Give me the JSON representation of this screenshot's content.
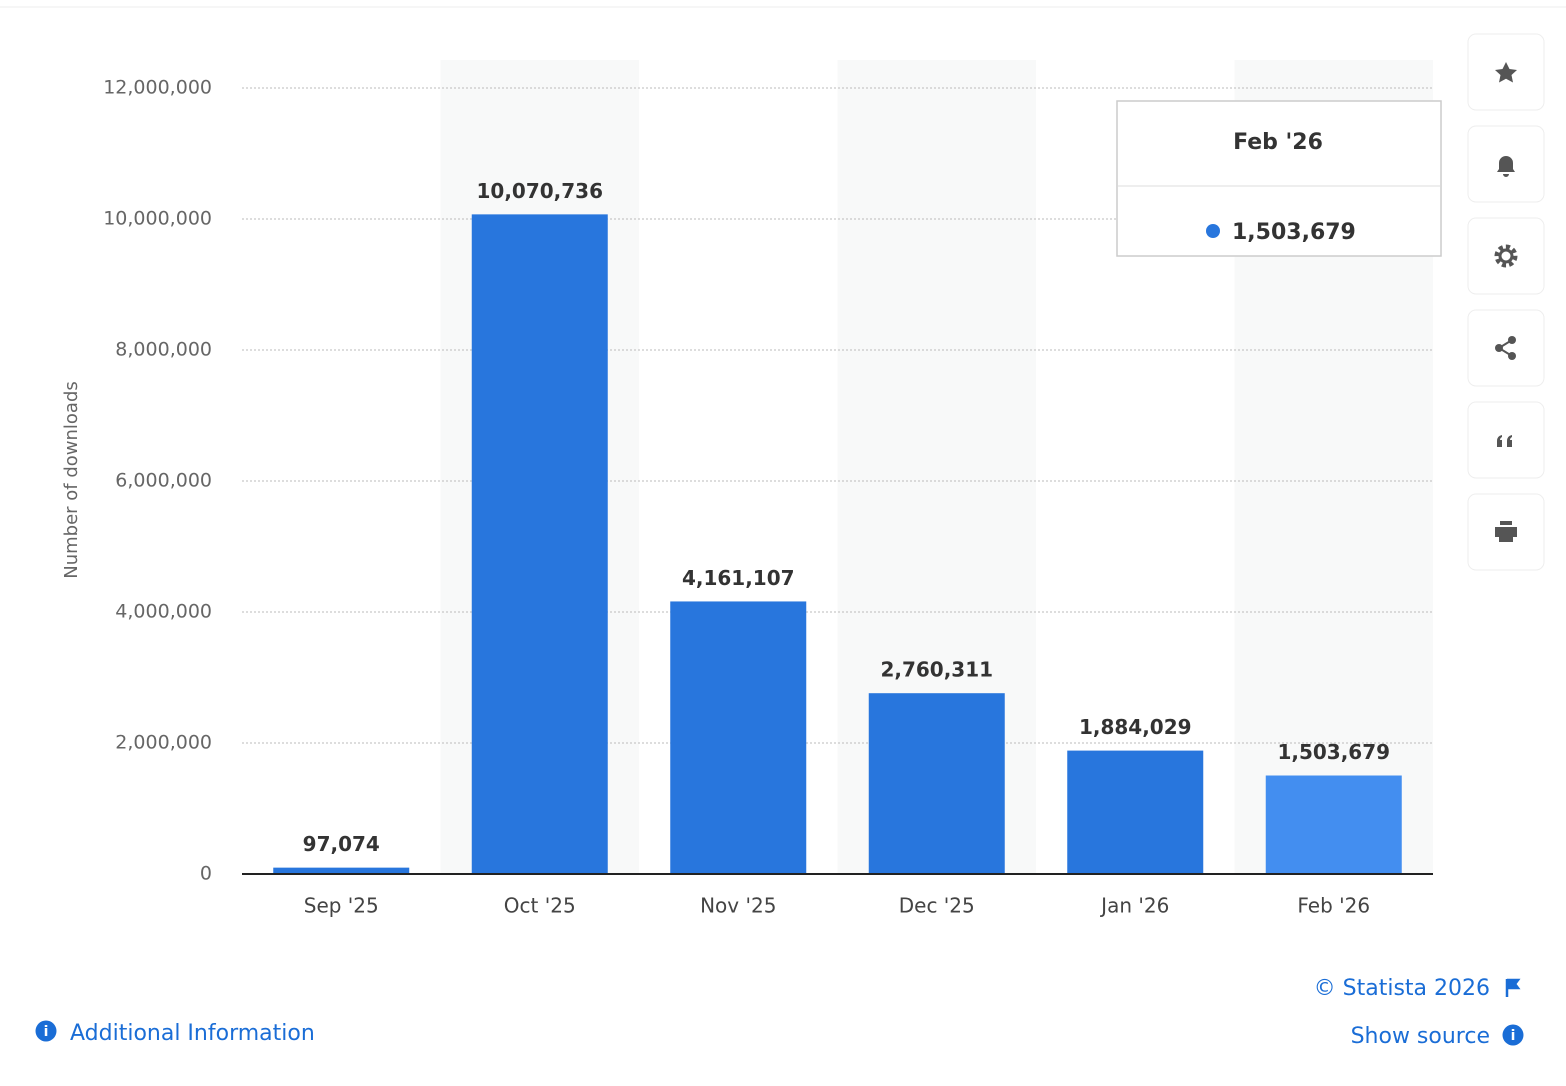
{
  "chart_data": {
    "type": "bar",
    "y_label": "Number of downloads",
    "categories": [
      "Sep '25",
      "Oct '25",
      "Nov '25",
      "Dec '25",
      "Jan '26",
      "Feb '26"
    ],
    "values": [
      97074,
      10070736,
      4161107,
      2760311,
      1884029,
      1503679
    ],
    "value_labels": [
      "97,074",
      "10,070,736",
      "4,161,107",
      "2,760,311",
      "1,884,029",
      "1,503,679"
    ],
    "colors": [
      "#2876dd",
      "#2876dd",
      "#2876dd",
      "#2876dd",
      "#2876dd",
      "#438ef0"
    ],
    "ylim": [
      0,
      12000000
    ],
    "yticks": [
      0,
      {
        "value": 2000000,
        "label": "2,000,000"
      },
      {
        "value": 4000000,
        "label": "4,000,000"
      },
      {
        "value": 6000000,
        "label": "6,000,000"
      },
      {
        "value": 8000000,
        "label": "8,000,000"
      },
      {
        "value": 10000000,
        "label": "10,000,000"
      },
      {
        "value": 12000000,
        "label": "12,000,000"
      }
    ],
    "grid": true
  },
  "footer": {
    "copyright": "© Statista 2026",
    "source": "Show source",
    "info": "Additional Information"
  }
}
